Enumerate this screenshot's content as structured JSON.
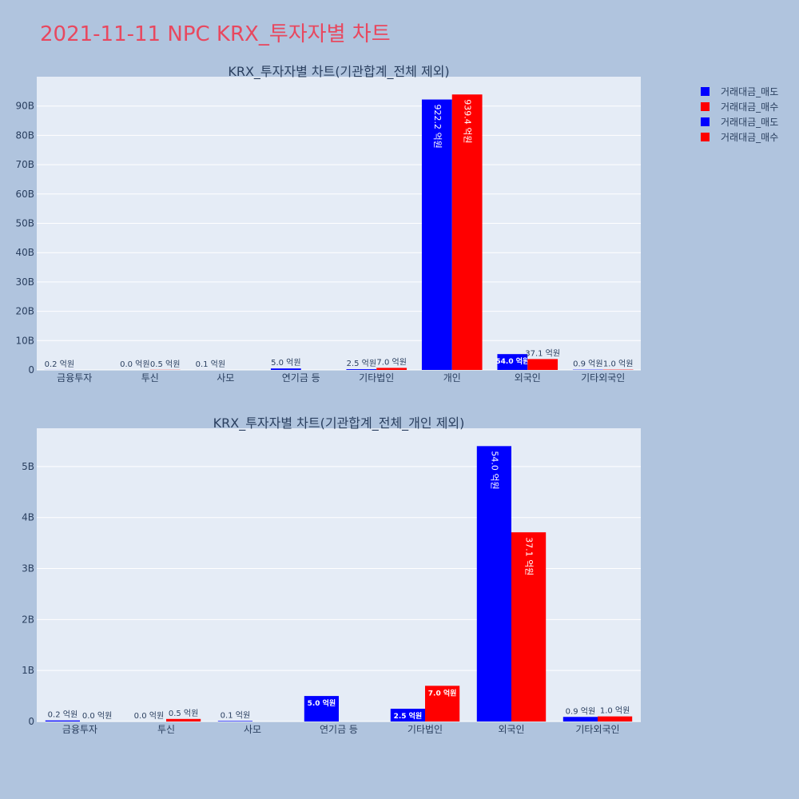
{
  "title": "2021-11-11 NPC KRX_투자자별 차트",
  "legend": [
    {
      "label": "거래대금_매도",
      "color": "#0000ff"
    },
    {
      "label": "거래대금_매수",
      "color": "#ff0000"
    },
    {
      "label": "거래대금_매도",
      "color": "#0000ff"
    },
    {
      "label": "거래대금_매수",
      "color": "#ff0000"
    }
  ],
  "chart_data": [
    {
      "type": "bar",
      "title": "KRX_투자자별 차트(기관합계_전체 제외)",
      "categories": [
        "금융투자",
        "투신",
        "사모",
        "연기금 등",
        "기타법인",
        "개인",
        "외국인",
        "기타외국인"
      ],
      "ylim": [
        0,
        100000000000
      ],
      "yticks": [
        0,
        10000000000,
        20000000000,
        30000000000,
        40000000000,
        50000000000,
        60000000000,
        70000000000,
        80000000000,
        90000000000
      ],
      "ytick_labels": [
        "0",
        "10B",
        "20B",
        "30B",
        "40B",
        "50B",
        "60B",
        "70B",
        "80B",
        "90B"
      ],
      "grid": true,
      "series": [
        {
          "name": "거래대금_매도",
          "color": "#0000ff",
          "values": [
            20000000,
            0,
            10000000,
            500000000,
            250000000,
            92220000000,
            5400000000,
            90000000
          ],
          "labels": [
            "0.2 억원",
            "0.0 억원",
            "0.1 억원",
            "5.0 억원",
            "2.5 억원",
            "922.2 억원",
            "54.0 억원",
            "0.9 억원"
          ]
        },
        {
          "name": "거래대금_매수",
          "color": "#ff0000",
          "values": [
            0,
            50000000,
            0,
            0,
            700000000,
            93940000000,
            3710000000,
            100000000
          ],
          "labels": [
            "",
            "0.5 억원",
            "",
            "",
            "7.0 억원",
            "939.4 억원",
            "37.1 억원",
            "1.0 억원"
          ]
        }
      ]
    },
    {
      "type": "bar",
      "title": "KRX_투자자별 차트(기관합계_전체_개인 제외)",
      "categories": [
        "금융투자",
        "투신",
        "사모",
        "연기금 등",
        "기타법인",
        "외국인",
        "기타외국인"
      ],
      "ylim": [
        0,
        5750000000
      ],
      "yticks": [
        0,
        1000000000,
        2000000000,
        3000000000,
        4000000000,
        5000000000
      ],
      "ytick_labels": [
        "0",
        "1B",
        "2B",
        "3B",
        "4B",
        "5B"
      ],
      "grid": true,
      "series": [
        {
          "name": "거래대금_매도",
          "color": "#0000ff",
          "values": [
            20000000,
            0,
            10000000,
            500000000,
            250000000,
            5400000000,
            90000000
          ],
          "labels": [
            "0.2 억원",
            "0.0 억원",
            "0.1 억원",
            "5.0 억원",
            "2.5 억원",
            "54.0 억원",
            "0.9 억원"
          ]
        },
        {
          "name": "거래대금_매수",
          "color": "#ff0000",
          "values": [
            0,
            50000000,
            0,
            0,
            700000000,
            3710000000,
            100000000
          ],
          "labels": [
            "0.0 억원",
            "0.5 억원",
            "",
            "",
            "7.0 억원",
            "37.1 억원",
            "1.0 억원"
          ]
        }
      ]
    }
  ]
}
